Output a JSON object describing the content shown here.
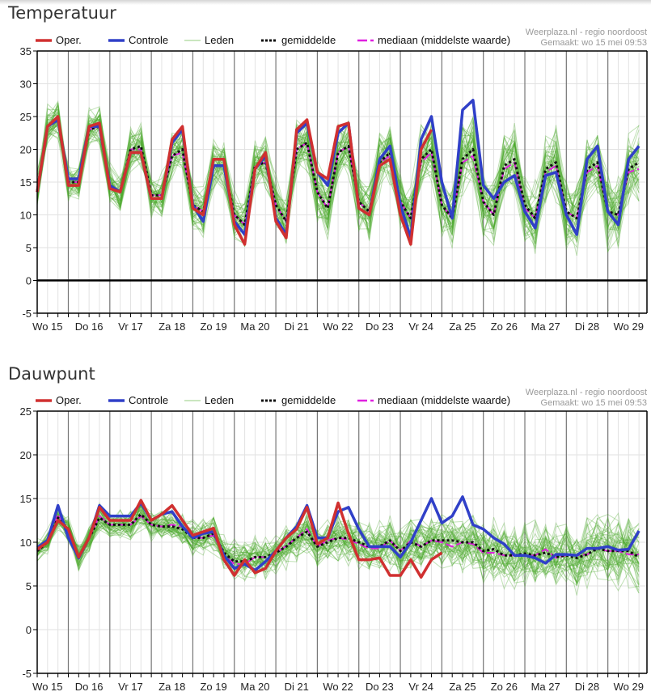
{
  "page": {
    "charts_titles": [
      "Temperatuur",
      "Dauwpunt"
    ]
  },
  "legend": {
    "oper": "Oper.",
    "controle": "Controle",
    "leden": "Leden",
    "gemiddelde": "gemiddelde",
    "mediaan": "mediaan (middelste waarde)"
  },
  "credit": {
    "source": "Weerplaza.nl - regio noordoost",
    "made": "Gemaakt: wo 15 mei 09:53"
  },
  "colors": {
    "oper": "#d03030",
    "controle": "#3040c8",
    "leden": "#4aa82a",
    "gemiddelde": "#111111",
    "mediaan": "#e020e0"
  },
  "chart_data": [
    {
      "type": "line",
      "title": "Temperatuur",
      "xlabel": "",
      "ylabel": "",
      "ylim": [
        -5,
        35
      ],
      "yticks": [
        "35",
        "30",
        "25",
        "20",
        "15",
        "10",
        "5",
        "0",
        "-5"
      ],
      "x_step_hours": 6,
      "x_start_hour": 6,
      "day_labels": [
        "Wo 15",
        "Do 16",
        "Vr 17",
        "Za 18",
        "Zo 19",
        "Ma 20",
        "Di 21",
        "Wo 22",
        "Do 23",
        "Vr 24",
        "Za 25",
        "Zo 26",
        "Ma 27",
        "Di 28",
        "Wo 29"
      ],
      "grid": true,
      "legend_position": "top",
      "series": [
        {
          "name": "Oper.",
          "values": [
            13.5,
            23.5,
            25,
            14.5,
            14.5,
            23.5,
            24,
            14,
            13.5,
            19.5,
            19.5,
            12.5,
            12.5,
            21.5,
            23.5,
            11,
            10,
            18.5,
            18.5,
            8.5,
            5.5,
            17,
            19.5,
            9,
            6.5,
            23,
            24.5,
            16.5,
            15.5,
            23.5,
            24,
            11,
            10,
            17.5,
            18.5,
            10,
            5.5,
            20,
            23,
            null,
            null,
            null,
            null,
            null,
            null,
            null,
            null,
            null,
            null,
            null,
            null,
            null,
            null,
            null,
            null,
            null,
            null,
            null,
            null
          ]
        },
        {
          "name": "Controle",
          "values": [
            13.5,
            23.5,
            24.5,
            15.5,
            15.5,
            23.5,
            23.5,
            14.5,
            13.5,
            19.5,
            19.5,
            12.5,
            12.5,
            21,
            23,
            11.5,
            9,
            17.5,
            17.5,
            9,
            7,
            17,
            19,
            9.5,
            7,
            22.5,
            24,
            16.5,
            14.5,
            22.5,
            24,
            11,
            10,
            18.5,
            20.5,
            11.5,
            6.5,
            21.5,
            25,
            15,
            9.5,
            26,
            27.5,
            14.5,
            12.5,
            15,
            16,
            10.5,
            8,
            16,
            16.5,
            10,
            7,
            18.5,
            20.5,
            10.5,
            8.5,
            18.5,
            20.5
          ]
        },
        {
          "name": "gemiddelde",
          "values": [
            13.5,
            23.5,
            24.5,
            15,
            15,
            23,
            23.5,
            14.5,
            13.5,
            20,
            20.5,
            13,
            13,
            19,
            20,
            11.5,
            10.5,
            17.5,
            17.5,
            10,
            8.5,
            17.5,
            18,
            11.5,
            9,
            20,
            21,
            13.5,
            11,
            19.5,
            20.5,
            12,
            10.5,
            18,
            19.5,
            12,
            9.5,
            18.5,
            20,
            11.5,
            9.5,
            18.5,
            20,
            12,
            10,
            17.5,
            18.5,
            11.5,
            9.5,
            17,
            18,
            10.5,
            9.5,
            17,
            18,
            10.5,
            10,
            17,
            18
          ]
        },
        {
          "name": "mediaan (middelste waarde)",
          "values": [
            13.5,
            23.5,
            24.5,
            15,
            15,
            23,
            23.5,
            14.5,
            13.5,
            20,
            20,
            13,
            13,
            19,
            19.5,
            11.5,
            10.5,
            17.5,
            17.5,
            10,
            8.5,
            17.5,
            18,
            11.5,
            9,
            20,
            21,
            13.5,
            11,
            19.5,
            20.5,
            12,
            10.5,
            18,
            19,
            12,
            9.5,
            18,
            19.5,
            11.5,
            9.5,
            18,
            19,
            12,
            10,
            17,
            18,
            11,
            9.5,
            16.5,
            17.5,
            10.5,
            9.5,
            16.5,
            17.5,
            10.5,
            10,
            16.5,
            17
          ]
        }
      ]
    },
    {
      "type": "line",
      "title": "Dauwpunt",
      "xlabel": "",
      "ylabel": "",
      "ylim": [
        -5,
        25
      ],
      "yticks": [
        "25",
        "20",
        "15",
        "10",
        "5",
        "0",
        "-5"
      ],
      "x_step_hours": 6,
      "x_start_hour": 6,
      "day_labels": [
        "Wo 15",
        "Do 16",
        "Vr 17",
        "Za 18",
        "Zo 19",
        "Ma 20",
        "Di 21",
        "Wo 22",
        "Do 23",
        "Vr 24",
        "Za 25",
        "Zo 26",
        "Ma 27",
        "Di 28",
        "Wo 29"
      ],
      "grid": true,
      "legend_position": "top",
      "series": [
        {
          "name": "Oper.",
          "values": [
            9.2,
            10,
            12.5,
            11.5,
            8.3,
            10.5,
            14,
            12.5,
            12.5,
            12.5,
            14.8,
            12.5,
            13.2,
            14.2,
            12.5,
            10.8,
            11.2,
            11.6,
            8,
            6.2,
            8,
            6.5,
            7,
            9,
            10.5,
            11.5,
            14,
            9.8,
            10.5,
            14.5,
            11,
            8,
            8,
            8.2,
            6.2,
            6.2,
            8,
            6,
            8,
            8.8,
            null,
            null,
            null,
            null,
            null,
            null,
            null,
            null,
            null,
            null,
            null,
            null,
            null,
            null,
            null,
            null,
            null,
            null,
            null
          ]
        },
        {
          "name": "Controle",
          "values": [
            9.4,
            10.2,
            14.2,
            10.5,
            8.2,
            10.5,
            14.2,
            13,
            13,
            13,
            14.5,
            12.5,
            13.2,
            13.5,
            11.8,
            10.5,
            11,
            11.2,
            8.5,
            7,
            7.5,
            6.8,
            7.8,
            9,
            10.5,
            11.8,
            14.2,
            10.5,
            10.5,
            13.5,
            14,
            11.5,
            9.5,
            9.5,
            9.5,
            8.3,
            10,
            12.5,
            15,
            12.2,
            13,
            15.2,
            12,
            11.5,
            10.5,
            9.8,
            8.5,
            8.5,
            8.2,
            7.6,
            8.6,
            8.6,
            8.5,
            9.3,
            9.3,
            9.5,
            9.1,
            9.2,
            11.3
          ]
        },
        {
          "name": "gemiddelde",
          "values": [
            9,
            10,
            12.8,
            11.5,
            8.3,
            10.5,
            12.8,
            12,
            12,
            12,
            13.2,
            12,
            11.8,
            11.8,
            11.5,
            10.5,
            10.5,
            11,
            8.8,
            7.8,
            7.8,
            8.3,
            8.3,
            8.8,
            9.5,
            10.5,
            11.2,
            9.5,
            10,
            10.5,
            10.5,
            10,
            9.5,
            9.5,
            10.2,
            9,
            10,
            9.5,
            10.2,
            10.2,
            10.2,
            10,
            10,
            9,
            9.2,
            8.5,
            8.5,
            8.7,
            8.5,
            8.8,
            8.3,
            8.5,
            8.2,
            8.6,
            9.3,
            9,
            9,
            9,
            8.3
          ]
        },
        {
          "name": "mediaan (middelste waarde)",
          "values": [
            9,
            10,
            13.2,
            11,
            8.3,
            10.5,
            13,
            12,
            12,
            12,
            13,
            12,
            11.8,
            12,
            11.8,
            10.5,
            10.5,
            10.8,
            8.5,
            7.5,
            7.5,
            8.3,
            8.3,
            8.7,
            9.6,
            10.5,
            11.5,
            9.5,
            10.2,
            10.5,
            10.3,
            9.8,
            9.3,
            9.3,
            10.2,
            9,
            10.2,
            9.5,
            10.2,
            10,
            9.5,
            10,
            9.8,
            8.8,
            8.8,
            8.5,
            8.5,
            8.5,
            8.5,
            9.2,
            8.2,
            8.5,
            8.5,
            8.6,
            9.3,
            9,
            9,
            8.6,
            8.6
          ]
        }
      ]
    }
  ]
}
